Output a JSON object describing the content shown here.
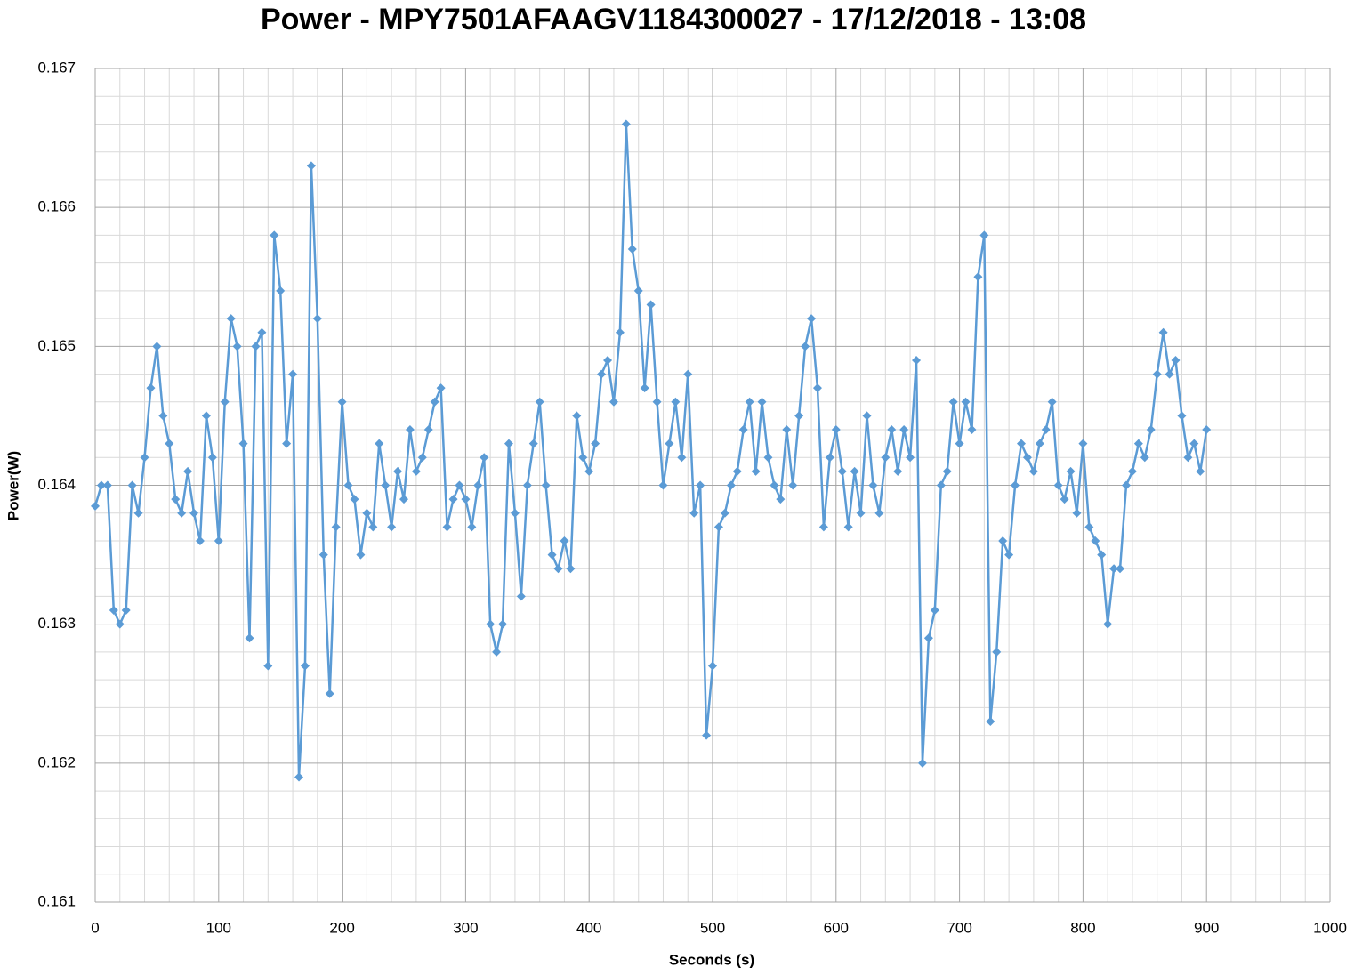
{
  "chart_data": {
    "type": "line",
    "title": "Power - MPY7501AFAAGV1184300027 - 17/12/2018 - 13:08",
    "x_label": "Seconds (s)",
    "y_label": "Power(W)",
    "xlim": [
      0,
      1000
    ],
    "xticks": [
      0,
      100,
      200,
      300,
      400,
      500,
      600,
      700,
      800,
      900,
      1000
    ],
    "ylim": [
      0.161,
      0.167
    ],
    "yticks": [
      0.161,
      0.162,
      0.163,
      0.164,
      0.165,
      0.166,
      0.167
    ],
    "grid": true,
    "minor_grid": true,
    "series": [
      {
        "name": "Power",
        "color": "#5b9bd5",
        "x": [
          0,
          5,
          10,
          15,
          20,
          25,
          30,
          35,
          40,
          45,
          50,
          55,
          60,
          65,
          70,
          75,
          80,
          85,
          90,
          95,
          100,
          105,
          110,
          115,
          120,
          125,
          130,
          135,
          140,
          145,
          150,
          155,
          160,
          165,
          170,
          175,
          180,
          185,
          190,
          195,
          200,
          205,
          210,
          215,
          220,
          225,
          230,
          235,
          240,
          245,
          250,
          255,
          260,
          265,
          270,
          275,
          280,
          285,
          290,
          295,
          300,
          305,
          310,
          315,
          320,
          325,
          330,
          335,
          340,
          345,
          350,
          355,
          360,
          365,
          370,
          375,
          380,
          385,
          390,
          395,
          400,
          405,
          410,
          415,
          420,
          425,
          430,
          435,
          440,
          445,
          450,
          455,
          460,
          465,
          470,
          475,
          480,
          485,
          490,
          495,
          500,
          505,
          510,
          515,
          520,
          525,
          530,
          535,
          540,
          545,
          550,
          555,
          560,
          565,
          570,
          575,
          580,
          585,
          590,
          595,
          600,
          605,
          610,
          615,
          620,
          625,
          630,
          635,
          640,
          645,
          650,
          655,
          660,
          665,
          670,
          675,
          680,
          685,
          690,
          695,
          700,
          705,
          710,
          715,
          720,
          725,
          730,
          735,
          740,
          745,
          750,
          755,
          760,
          765,
          770,
          775,
          780,
          785,
          790,
          795,
          800,
          805,
          810,
          815,
          820,
          825,
          830,
          835,
          840,
          845,
          850,
          855,
          860,
          865,
          870,
          875,
          880,
          885,
          890,
          895,
          900
        ],
        "values": [
          0.16385,
          0.164,
          0.164,
          0.1631,
          0.163,
          0.1631,
          0.164,
          0.1638,
          0.1642,
          0.1647,
          0.165,
          0.1645,
          0.1643,
          0.1639,
          0.1638,
          0.1641,
          0.1638,
          0.1636,
          0.1645,
          0.1642,
          0.1636,
          0.1646,
          0.1652,
          0.165,
          0.1643,
          0.1629,
          0.165,
          0.1651,
          0.1627,
          0.1658,
          0.1654,
          0.1643,
          0.1648,
          0.1619,
          0.1627,
          0.1663,
          0.1652,
          0.1635,
          0.1625,
          0.1637,
          0.1646,
          0.164,
          0.1639,
          0.1635,
          0.1638,
          0.1637,
          0.1643,
          0.164,
          0.1637,
          0.1641,
          0.1639,
          0.1644,
          0.1641,
          0.1642,
          0.1644,
          0.1646,
          0.1647,
          0.1637,
          0.1639,
          0.164,
          0.1639,
          0.1637,
          0.164,
          0.1642,
          0.163,
          0.1628,
          0.163,
          0.1643,
          0.1638,
          0.1632,
          0.164,
          0.1643,
          0.1646,
          0.164,
          0.1635,
          0.1634,
          0.1636,
          0.1634,
          0.1645,
          0.1642,
          0.1641,
          0.1643,
          0.1648,
          0.1649,
          0.1646,
          0.1651,
          0.1666,
          0.1657,
          0.1654,
          0.1647,
          0.1653,
          0.1646,
          0.164,
          0.1643,
          0.1646,
          0.1642,
          0.1648,
          0.1638,
          0.164,
          0.1622,
          0.1627,
          0.1637,
          0.1638,
          0.164,
          0.1641,
          0.1644,
          0.1646,
          0.1641,
          0.1646,
          0.1642,
          0.164,
          0.1639,
          0.1644,
          0.164,
          0.1645,
          0.165,
          0.1652,
          0.1647,
          0.1637,
          0.1642,
          0.1644,
          0.1641,
          0.1637,
          0.1641,
          0.1638,
          0.1645,
          0.164,
          0.1638,
          0.1642,
          0.1644,
          0.1641,
          0.1644,
          0.1642,
          0.1649,
          0.162,
          0.1629,
          0.1631,
          0.164,
          0.1641,
          0.1646,
          0.1643,
          0.1646,
          0.1644,
          0.1655,
          0.1658,
          0.1623,
          0.1628,
          0.1636,
          0.1635,
          0.164,
          0.1643,
          0.1642,
          0.1641,
          0.1643,
          0.1644,
          0.1646,
          0.164,
          0.1639,
          0.1641,
          0.1638,
          0.1643,
          0.1637,
          0.1636,
          0.1635,
          0.163,
          0.1634,
          0.1634,
          0.164,
          0.1641,
          0.1643,
          0.1642,
          0.1644,
          0.1648,
          0.1651,
          0.1648,
          0.1649,
          0.1645,
          0.1642,
          0.1643,
          0.1641,
          0.1644
        ]
      }
    ]
  }
}
